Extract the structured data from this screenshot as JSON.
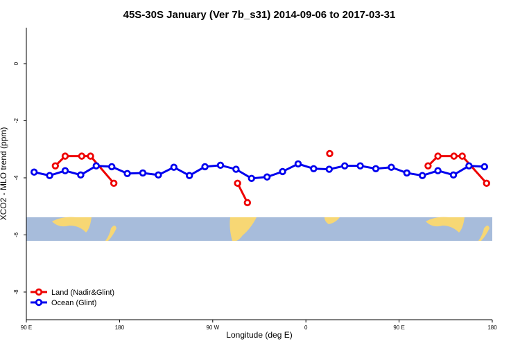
{
  "chart_data": {
    "type": "line",
    "title": "45S-30S January (Ver 7b_s31)   2014-09-06 to 2017-03-31",
    "x_label": "Longitude (deg E)",
    "y_label": "XCO2 - MLO trend (ppm)",
    "xlim": [
      90,
      540
    ],
    "ylim": [
      -8.97,
      1.26
    ],
    "xticks": [
      {
        "value": 90,
        "label": "90 E"
      },
      180,
      {
        "value": 270,
        "label": "90 W"
      },
      {
        "value": 360,
        "label": "0"
      },
      {
        "value": 450,
        "label": "90 E"
      },
      {
        "value": 540,
        "label": "180"
      }
    ],
    "yticks": [
      0,
      -2,
      -4,
      -6,
      -8
    ],
    "legend": "bottom-left",
    "series": [
      {
        "name": "Land (Nadir&Glint)",
        "color": "#ee0000",
        "x": [
          118,
          127.5,
          143.5,
          152,
          174.5,
          null,
          294,
          303.5,
          null,
          383,
          null,
          478,
          487.5,
          503,
          511,
          534.5
        ],
        "values": [
          -3.58,
          -3.24,
          -3.24,
          -3.24,
          -4.19,
          null,
          -4.19,
          -4.87,
          null,
          -3.15,
          null,
          -3.58,
          -3.24,
          -3.24,
          -3.24,
          -4.19
        ]
      },
      {
        "name": "Ocean (Glint)",
        "color": "#0000ee",
        "x": [
          97.5,
          112.5,
          127.5,
          142.5,
          157.5,
          172.5,
          187.5,
          202.5,
          217.5,
          232.5,
          247.5,
          262.5,
          277.5,
          292.5,
          307.5,
          322.5,
          337.5,
          352.5,
          367.5,
          382.5,
          397.5,
          412.5,
          427.5,
          442.5,
          457.5,
          472.5,
          487.5,
          502.5,
          517.5,
          532.5
        ],
        "values": [
          -3.8,
          -3.92,
          -3.75,
          -3.9,
          -3.58,
          -3.61,
          -3.85,
          -3.83,
          -3.9,
          -3.63,
          -3.92,
          -3.61,
          -3.56,
          -3.7,
          -4.02,
          -3.97,
          -3.78,
          -3.51,
          -3.68,
          -3.7,
          -3.58,
          -3.58,
          -3.68,
          -3.63,
          -3.83,
          -3.92,
          -3.75,
          -3.9,
          -3.58,
          -3.61
        ]
      }
    ]
  }
}
